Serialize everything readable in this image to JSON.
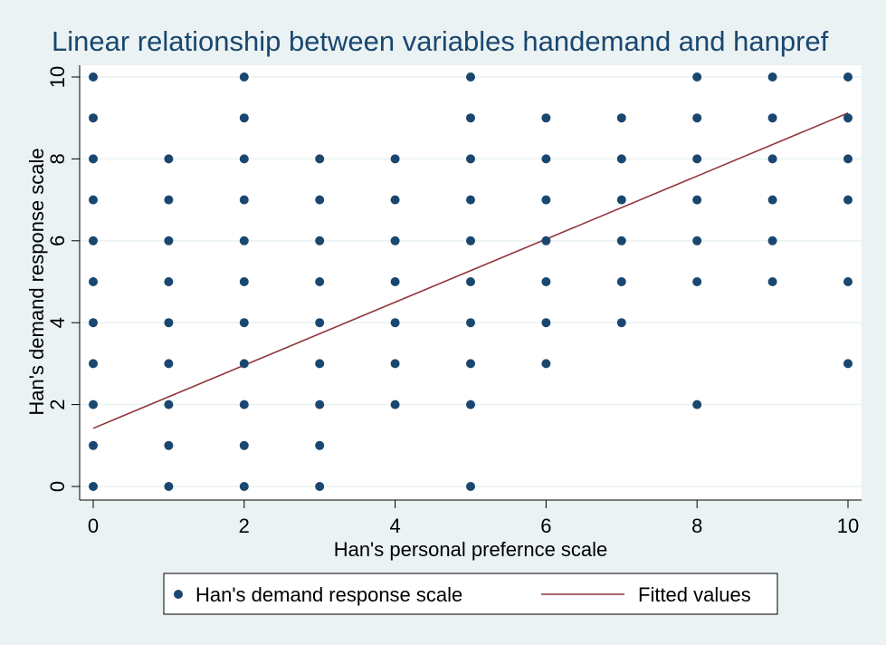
{
  "chart_data": {
    "type": "scatter",
    "title": "Linear relationship between variables handemand and hanpref",
    "xlabel": "Han's personal prefernce scale",
    "ylabel": "Han's demand response scale",
    "xlim": [
      0,
      10
    ],
    "ylim": [
      0,
      10
    ],
    "xticks": [
      0,
      2,
      4,
      6,
      8,
      10
    ],
    "yticks": [
      0,
      2,
      4,
      6,
      8,
      10
    ],
    "grid": true,
    "legend_position": "bottom",
    "series": [
      {
        "name": "Han's demand response scale",
        "kind": "scatter",
        "color": "#1a476f",
        "points": [
          [
            0,
            0
          ],
          [
            0,
            1
          ],
          [
            0,
            2
          ],
          [
            0,
            3
          ],
          [
            0,
            4
          ],
          [
            0,
            5
          ],
          [
            0,
            6
          ],
          [
            0,
            7
          ],
          [
            0,
            8
          ],
          [
            0,
            9
          ],
          [
            0,
            10
          ],
          [
            1,
            0
          ],
          [
            1,
            1
          ],
          [
            1,
            2
          ],
          [
            1,
            3
          ],
          [
            1,
            4
          ],
          [
            1,
            5
          ],
          [
            1,
            6
          ],
          [
            1,
            7
          ],
          [
            1,
            8
          ],
          [
            2,
            0
          ],
          [
            2,
            1
          ],
          [
            2,
            2
          ],
          [
            2,
            3
          ],
          [
            2,
            4
          ],
          [
            2,
            5
          ],
          [
            2,
            6
          ],
          [
            2,
            7
          ],
          [
            2,
            8
          ],
          [
            2,
            9
          ],
          [
            2,
            10
          ],
          [
            3,
            0
          ],
          [
            3,
            1
          ],
          [
            3,
            2
          ],
          [
            3,
            3
          ],
          [
            3,
            4
          ],
          [
            3,
            5
          ],
          [
            3,
            6
          ],
          [
            3,
            7
          ],
          [
            3,
            8
          ],
          [
            4,
            2
          ],
          [
            4,
            3
          ],
          [
            4,
            4
          ],
          [
            4,
            5
          ],
          [
            4,
            6
          ],
          [
            4,
            7
          ],
          [
            4,
            8
          ],
          [
            5,
            0
          ],
          [
            5,
            2
          ],
          [
            5,
            3
          ],
          [
            5,
            4
          ],
          [
            5,
            5
          ],
          [
            5,
            6
          ],
          [
            5,
            7
          ],
          [
            5,
            8
          ],
          [
            5,
            9
          ],
          [
            5,
            10
          ],
          [
            6,
            3
          ],
          [
            6,
            4
          ],
          [
            6,
            5
          ],
          [
            6,
            6
          ],
          [
            6,
            7
          ],
          [
            6,
            8
          ],
          [
            6,
            9
          ],
          [
            7,
            4
          ],
          [
            7,
            5
          ],
          [
            7,
            6
          ],
          [
            7,
            7
          ],
          [
            7,
            8
          ],
          [
            7,
            9
          ],
          [
            8,
            2
          ],
          [
            8,
            5
          ],
          [
            8,
            6
          ],
          [
            8,
            7
          ],
          [
            8,
            8
          ],
          [
            8,
            9
          ],
          [
            8,
            10
          ],
          [
            9,
            5
          ],
          [
            9,
            6
          ],
          [
            9,
            7
          ],
          [
            9,
            8
          ],
          [
            9,
            9
          ],
          [
            9,
            10
          ],
          [
            10,
            3
          ],
          [
            10,
            5
          ],
          [
            10,
            7
          ],
          [
            10,
            8
          ],
          [
            10,
            9
          ],
          [
            10,
            10
          ]
        ]
      },
      {
        "name": "Fitted values",
        "kind": "line",
        "color": "#90353b",
        "points": [
          [
            0,
            1.42
          ],
          [
            10,
            9.12
          ]
        ]
      }
    ]
  }
}
